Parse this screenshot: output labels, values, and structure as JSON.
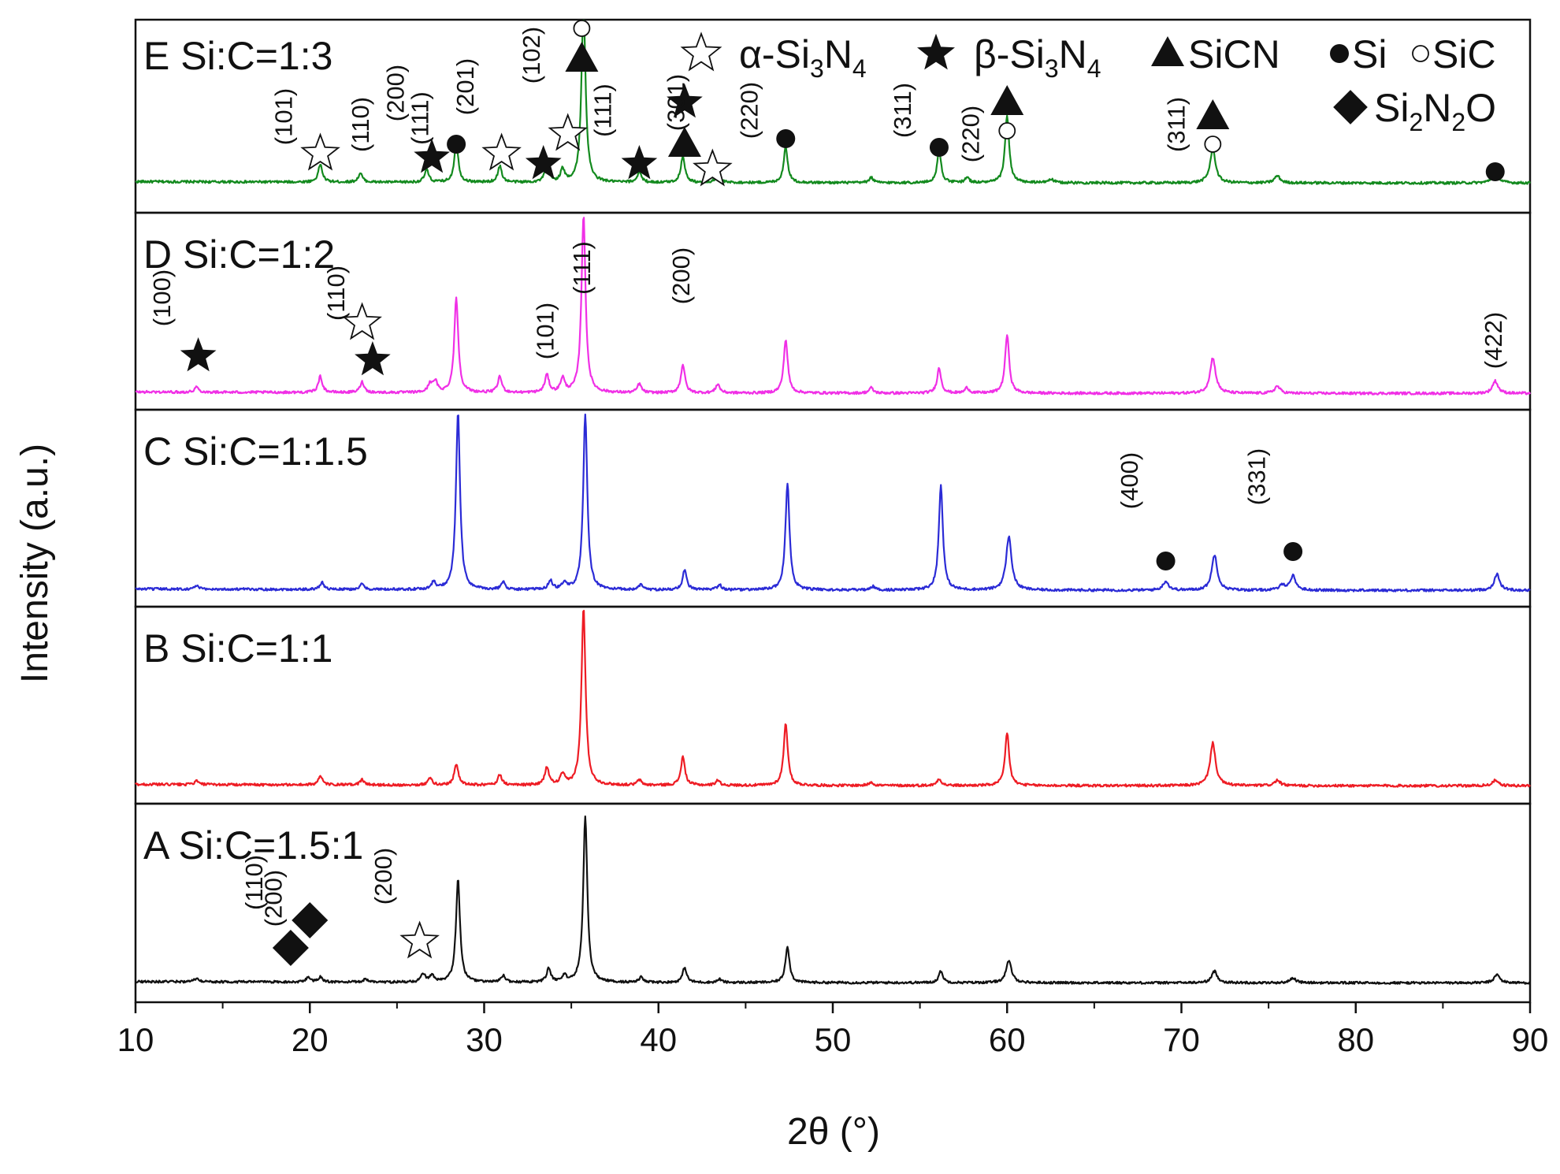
{
  "chart_data": {
    "type": "line",
    "xlabel": "2θ (°)",
    "ylabel": "Intensity (a.u.)",
    "xlim": [
      10,
      90
    ],
    "x_ticks": [
      10,
      20,
      30,
      40,
      50,
      60,
      70,
      80,
      90
    ],
    "colors": {
      "A": "#111111",
      "B": "#ee1c24",
      "C": "#2b2bd6",
      "D": "#f030e6",
      "E": "#138a1e"
    },
    "panels": [
      {
        "id": "E",
        "label": "E Si:C=1:3",
        "color": "#138a1e",
        "peaks": [
          [
            20.6,
            0.1
          ],
          [
            22.9,
            0.05
          ],
          [
            26.7,
            0.07
          ],
          [
            28.4,
            0.22
          ],
          [
            30.9,
            0.09
          ],
          [
            33.6,
            0.1
          ],
          [
            34.5,
            0.07
          ],
          [
            35.7,
            1.0
          ],
          [
            38.9,
            0.06
          ],
          [
            41.4,
            0.15
          ],
          [
            43.4,
            0.05
          ],
          [
            47.3,
            0.2
          ],
          [
            52.2,
            0.03
          ],
          [
            56.1,
            0.18
          ],
          [
            57.7,
            0.03
          ],
          [
            60.0,
            0.38
          ],
          [
            62.5,
            0.02
          ],
          [
            71.8,
            0.19
          ],
          [
            75.5,
            0.04
          ],
          [
            88.0,
            0.07
          ]
        ]
      },
      {
        "id": "D",
        "label": "D Si:C=1:2",
        "color": "#f030e6",
        "peaks": [
          [
            13.5,
            0.03
          ],
          [
            20.6,
            0.09
          ],
          [
            23.0,
            0.06
          ],
          [
            26.9,
            0.05
          ],
          [
            27.2,
            0.06
          ],
          [
            28.4,
            0.53
          ],
          [
            30.9,
            0.09
          ],
          [
            33.6,
            0.1
          ],
          [
            34.5,
            0.08
          ],
          [
            35.7,
            1.0
          ],
          [
            38.9,
            0.05
          ],
          [
            41.4,
            0.16
          ],
          [
            43.4,
            0.05
          ],
          [
            47.3,
            0.3
          ],
          [
            52.2,
            0.03
          ],
          [
            56.1,
            0.14
          ],
          [
            57.7,
            0.03
          ],
          [
            60.0,
            0.33
          ],
          [
            71.8,
            0.2
          ],
          [
            75.5,
            0.04
          ],
          [
            88.0,
            0.07
          ]
        ]
      },
      {
        "id": "C",
        "label": "C Si:C=1:1.5",
        "color": "#2b2bd6",
        "peaks": [
          [
            13.5,
            0.02
          ],
          [
            20.7,
            0.04
          ],
          [
            23.0,
            0.03
          ],
          [
            27.1,
            0.04
          ],
          [
            28.5,
            1.0
          ],
          [
            31.1,
            0.04
          ],
          [
            33.8,
            0.05
          ],
          [
            34.6,
            0.04
          ],
          [
            35.8,
            0.99
          ],
          [
            39.0,
            0.03
          ],
          [
            41.5,
            0.11
          ],
          [
            43.5,
            0.03
          ],
          [
            47.4,
            0.6
          ],
          [
            52.3,
            0.02
          ],
          [
            56.2,
            0.59
          ],
          [
            60.1,
            0.3
          ],
          [
            69.1,
            0.05
          ],
          [
            71.9,
            0.2
          ],
          [
            75.8,
            0.03
          ],
          [
            76.4,
            0.08
          ],
          [
            88.1,
            0.09
          ]
        ]
      },
      {
        "id": "B",
        "label": "B Si:C=1:1",
        "color": "#ee1c24",
        "peaks": [
          [
            13.5,
            0.02
          ],
          [
            20.6,
            0.05
          ],
          [
            23.0,
            0.03
          ],
          [
            26.9,
            0.04
          ],
          [
            28.4,
            0.12
          ],
          [
            30.9,
            0.06
          ],
          [
            33.6,
            0.1
          ],
          [
            34.5,
            0.06
          ],
          [
            35.7,
            1.0
          ],
          [
            38.9,
            0.03
          ],
          [
            41.4,
            0.16
          ],
          [
            43.4,
            0.03
          ],
          [
            47.3,
            0.35
          ],
          [
            52.2,
            0.02
          ],
          [
            56.1,
            0.04
          ],
          [
            60.0,
            0.3
          ],
          [
            71.8,
            0.24
          ],
          [
            75.5,
            0.03
          ],
          [
            88.0,
            0.03
          ]
        ]
      },
      {
        "id": "A",
        "label": "A Si:C=1.5:1",
        "color": "#111111",
        "peaks": [
          [
            13.5,
            0.02
          ],
          [
            19.9,
            0.03
          ],
          [
            20.6,
            0.03
          ],
          [
            23.2,
            0.02
          ],
          [
            26.5,
            0.05
          ],
          [
            27.0,
            0.04
          ],
          [
            28.5,
            0.62
          ],
          [
            31.1,
            0.04
          ],
          [
            33.7,
            0.08
          ],
          [
            34.6,
            0.04
          ],
          [
            35.8,
            1.0
          ],
          [
            39.0,
            0.03
          ],
          [
            41.5,
            0.09
          ],
          [
            43.5,
            0.02
          ],
          [
            47.4,
            0.22
          ],
          [
            56.2,
            0.07
          ],
          [
            60.1,
            0.13
          ],
          [
            71.9,
            0.07
          ],
          [
            76.4,
            0.03
          ],
          [
            88.1,
            0.05
          ]
        ]
      }
    ],
    "annotations": [
      {
        "panel": "E",
        "x": 20.6,
        "marker": "star-open",
        "hkl": "(101)"
      },
      {
        "panel": "E",
        "x": 23.0,
        "marker": "",
        "hkl": "(110)"
      },
      {
        "panel": "E",
        "x": 27.0,
        "marker": "star",
        "hkl": "(200)"
      },
      {
        "panel": "E",
        "x": 28.4,
        "marker": "circle",
        "hkl": "(111)"
      },
      {
        "panel": "E",
        "x": 31.0,
        "marker": "star-open",
        "hkl": "(201)"
      },
      {
        "panel": "E",
        "x": 33.4,
        "marker": "star",
        "hkl": ""
      },
      {
        "panel": "E",
        "x": 34.8,
        "marker": "star-open",
        "hkl": "(102)"
      },
      {
        "panel": "E",
        "x": 35.6,
        "marker": "triangle",
        "hkl": ""
      },
      {
        "panel": "E",
        "x": 35.6,
        "marker": "circle-open",
        "hkl": ""
      },
      {
        "panel": "E",
        "x": 38.9,
        "marker": "star",
        "hkl": "(111)"
      },
      {
        "panel": "E",
        "x": 41.5,
        "marker": "star",
        "hkl": ""
      },
      {
        "panel": "E",
        "x": 41.5,
        "marker": "triangle",
        "hkl": ""
      },
      {
        "panel": "E",
        "x": 43.1,
        "marker": "star-open",
        "hkl": "(301)"
      },
      {
        "panel": "E",
        "x": 47.3,
        "marker": "circle",
        "hkl": "(220)"
      },
      {
        "panel": "E",
        "x": 56.1,
        "marker": "circle",
        "hkl": "(311)"
      },
      {
        "panel": "E",
        "x": 60.0,
        "marker": "triangle",
        "hkl": ""
      },
      {
        "panel": "E",
        "x": 60.0,
        "marker": "circle-open",
        "hkl": "(220)"
      },
      {
        "panel": "E",
        "x": 71.8,
        "marker": "triangle",
        "hkl": ""
      },
      {
        "panel": "E",
        "x": 71.8,
        "marker": "circle-open",
        "hkl": "(311)"
      },
      {
        "panel": "E",
        "x": 88.0,
        "marker": "circle",
        "hkl": ""
      },
      {
        "panel": "D",
        "x": 13.6,
        "marker": "star",
        "hkl": "(100)"
      },
      {
        "panel": "D",
        "x": 23.0,
        "marker": "star-open",
        "hkl": ""
      },
      {
        "panel": "D",
        "x": 23.6,
        "marker": "star",
        "hkl": "(110)"
      },
      {
        "panel": "D",
        "x": 33.6,
        "marker": "",
        "hkl": "(101)"
      },
      {
        "panel": "D",
        "x": 35.7,
        "marker": "",
        "hkl": "(111)"
      },
      {
        "panel": "D",
        "x": 41.4,
        "marker": "",
        "hkl": "(200)"
      },
      {
        "panel": "D",
        "x": 88.0,
        "marker": "",
        "hkl": "(422)"
      },
      {
        "panel": "C",
        "x": 69.1,
        "marker": "circle",
        "hkl": "(400)"
      },
      {
        "panel": "C",
        "x": 76.4,
        "marker": "circle",
        "hkl": "(331)"
      },
      {
        "panel": "A",
        "x": 18.9,
        "marker": "diamond",
        "hkl": "(110)"
      },
      {
        "panel": "A",
        "x": 20.0,
        "marker": "diamond",
        "hkl": "(200)"
      },
      {
        "panel": "A",
        "x": 26.3,
        "marker": "star-open",
        "hkl": "(200)"
      }
    ],
    "legend": {
      "position": "top-right",
      "entries": [
        {
          "marker": "star-open",
          "label": "α-Si3N4",
          "parts": [
            "α-Si",
            "3",
            "N",
            "4"
          ]
        },
        {
          "marker": "star",
          "label": "β-Si3N4",
          "parts": [
            "β-Si",
            "3",
            "N",
            "4"
          ]
        },
        {
          "marker": "triangle",
          "label": "SiCN",
          "parts": [
            "SiCN"
          ]
        },
        {
          "marker": "circle",
          "label": "Si",
          "parts": [
            "Si"
          ]
        },
        {
          "marker": "circle-open",
          "label": "SiC",
          "parts": [
            "SiC"
          ]
        },
        {
          "marker": "diamond",
          "label": "Si2N2O",
          "parts": [
            "Si",
            "2",
            "N",
            "2",
            "O"
          ]
        }
      ]
    }
  }
}
